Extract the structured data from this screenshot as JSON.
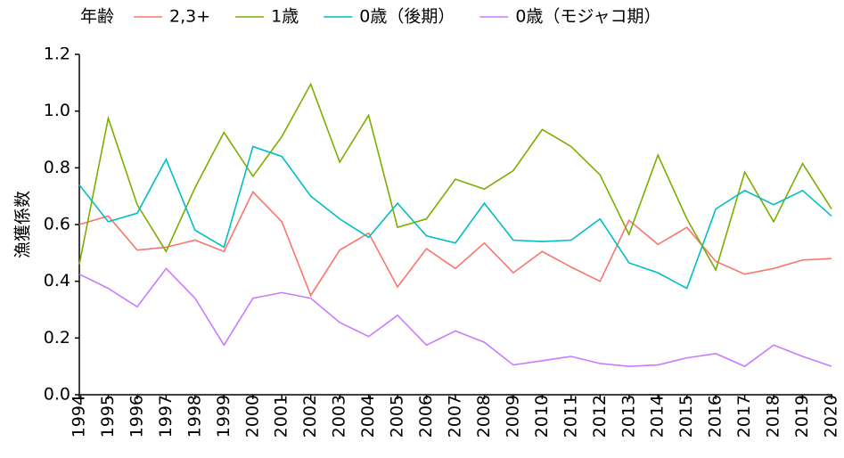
{
  "chart_data": {
    "type": "line",
    "legend_title": "年齢",
    "y_label": "漁獲係数",
    "categories": [
      "1994",
      "1995",
      "1996",
      "1997",
      "1998",
      "1999",
      "2000",
      "2001",
      "2002",
      "2003",
      "2004",
      "2005",
      "2006",
      "2007",
      "2008",
      "2009",
      "2010",
      "2011",
      "2012",
      "2013",
      "2014",
      "2015",
      "2016",
      "2017",
      "2018",
      "2019",
      "2020"
    ],
    "series": [
      {
        "name": "2,3+",
        "color": "#F8766D",
        "values": [
          0.6,
          0.63,
          0.51,
          0.52,
          0.545,
          0.505,
          0.715,
          0.61,
          0.35,
          0.51,
          0.57,
          0.38,
          0.515,
          0.445,
          0.535,
          0.43,
          0.505,
          0.45,
          0.4,
          0.615,
          0.53,
          0.59,
          0.47,
          0.425,
          0.445,
          0.475,
          0.48
        ]
      },
      {
        "name": "1歳",
        "color": "#7CAE00",
        "values": [
          0.46,
          0.975,
          0.67,
          0.505,
          0.73,
          0.925,
          0.77,
          0.91,
          1.095,
          0.82,
          0.985,
          0.59,
          0.62,
          0.76,
          0.725,
          0.79,
          0.935,
          0.875,
          0.775,
          0.565,
          0.845,
          0.62,
          0.44,
          0.785,
          0.61,
          0.815,
          0.655
        ]
      },
      {
        "name": "0歳（後期）",
        "color": "#00BFC4",
        "values": [
          0.74,
          0.61,
          0.64,
          0.83,
          0.58,
          0.52,
          0.875,
          0.84,
          0.7,
          0.62,
          0.555,
          0.675,
          0.56,
          0.535,
          0.675,
          0.545,
          0.54,
          0.545,
          0.62,
          0.465,
          0.43,
          0.375,
          0.655,
          0.72,
          0.67,
          0.72,
          0.63
        ]
      },
      {
        "name": "0歳（モジャコ期）",
        "color": "#C77CFF",
        "values": [
          0.425,
          0.375,
          0.31,
          0.445,
          0.34,
          0.175,
          0.34,
          0.36,
          0.34,
          0.255,
          0.205,
          0.28,
          0.175,
          0.225,
          0.185,
          0.105,
          0.12,
          0.135,
          0.11,
          0.1,
          0.105,
          0.13,
          0.145,
          0.1,
          0.175,
          0.135,
          0.1
        ]
      }
    ],
    "ylim": [
      0,
      1.2
    ],
    "yticks": [
      {
        "value": 0,
        "label": "0.0"
      },
      0.2,
      0.4,
      0.6,
      0.8,
      {
        "value": 1,
        "label": "1.0"
      },
      1.2
    ],
    "legend_position": "top"
  }
}
